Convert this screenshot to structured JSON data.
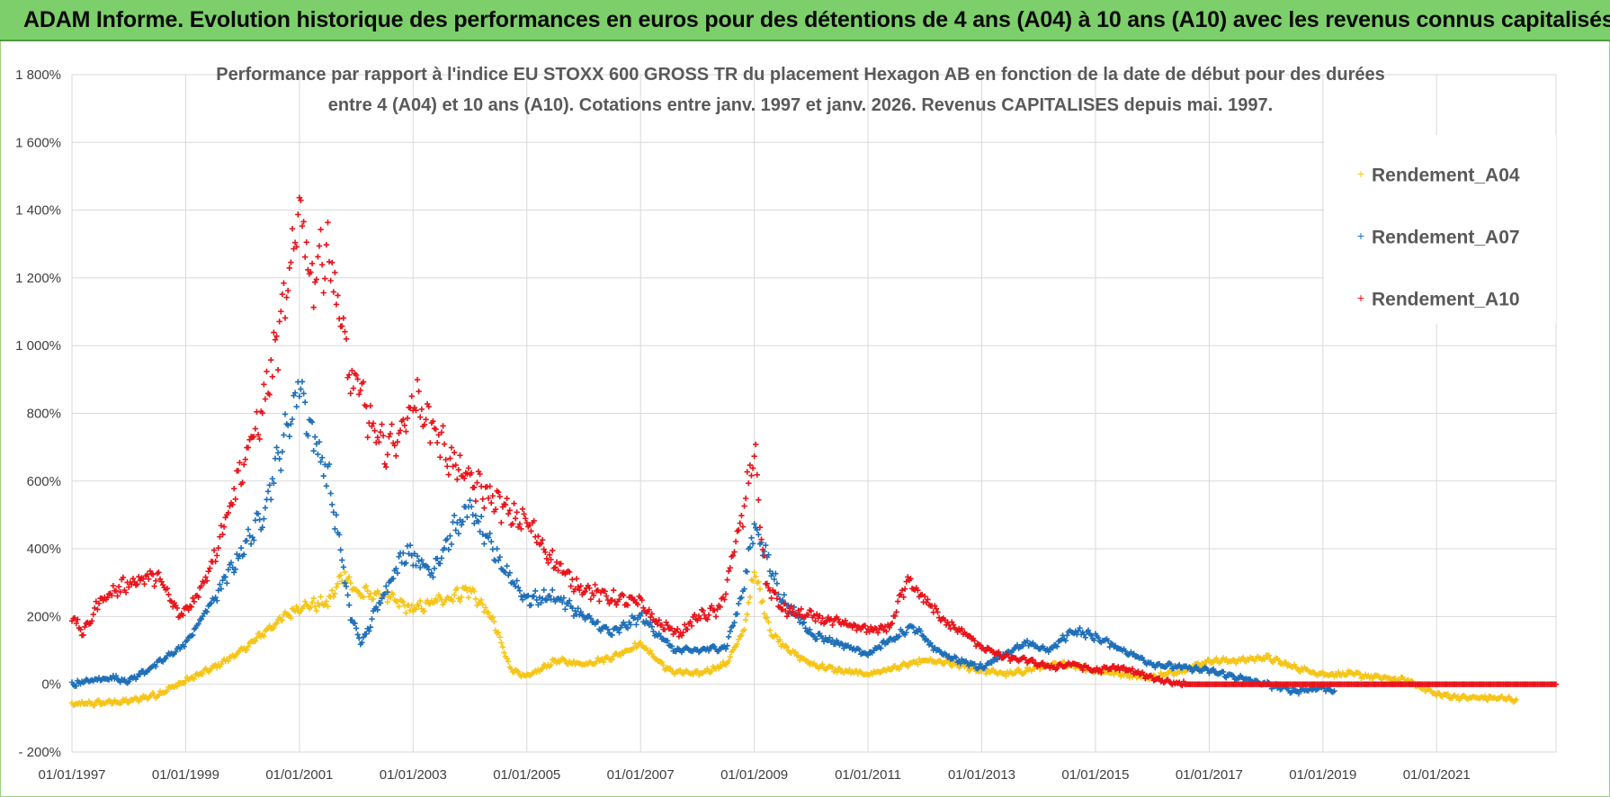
{
  "header": {
    "title": "ADAM Informe. Evolution historique des performances en euros pour des détentions de 4 ans (A04) à 10 ans (A10) avec les revenus connus capitalisés"
  },
  "chart_data": {
    "type": "scatter",
    "title_line1": "Performance par rapport à l'indice EU STOXX 600 GROSS TR  du placement Hexagon AB en fonction de la date de début pour des durées",
    "title_line2": "entre 4 (A04) et 10 ans (A10).  Cotations entre janv. 1997 et janv. 2026. Revenus CAPITALISES depuis mai. 1997.",
    "x_tick_labels": [
      "01/01/1997",
      "01/01/1999",
      "01/01/2001",
      "01/01/2003",
      "01/01/2005",
      "01/01/2007",
      "01/01/2009",
      "01/01/2011",
      "01/01/2013",
      "01/01/2015",
      "01/01/2017",
      "01/01/2019",
      "01/01/2021"
    ],
    "x_tick_years": [
      1997,
      1999,
      2001,
      2003,
      2005,
      2007,
      2009,
      2011,
      2013,
      2015,
      2017,
      2019,
      2021
    ],
    "xlim": [
      1997,
      2023.1
    ],
    "y_tick_labels": [
      "1 800%",
      "1 600%",
      "1 400%",
      "1 200%",
      "1 000%",
      "800%",
      "600%",
      "400%",
      "200%",
      "0%",
      "- 200%"
    ],
    "y_tick_values": [
      1800,
      1600,
      1400,
      1200,
      1000,
      800,
      600,
      400,
      200,
      0,
      -200
    ],
    "ylim": [
      -200,
      1800
    ],
    "marker": "+",
    "grid": true,
    "legend_position": "top-right",
    "series": [
      {
        "name": "Rendement_A04",
        "color": "#f5c518",
        "points": [
          [
            1997.0,
            -60
          ],
          [
            1997.5,
            -55
          ],
          [
            1998.0,
            -50
          ],
          [
            1998.5,
            -30
          ],
          [
            1999.0,
            10
          ],
          [
            1999.5,
            50
          ],
          [
            2000.0,
            100
          ],
          [
            2000.5,
            170
          ],
          [
            2001.0,
            230
          ],
          [
            2001.5,
            240
          ],
          [
            2001.8,
            330
          ],
          [
            2002.0,
            270
          ],
          [
            2002.5,
            260
          ],
          [
            2003.0,
            220
          ],
          [
            2003.5,
            250
          ],
          [
            2004.0,
            280
          ],
          [
            2004.4,
            190
          ],
          [
            2004.7,
            50
          ],
          [
            2005.0,
            20
          ],
          [
            2005.5,
            70
          ],
          [
            2006.0,
            60
          ],
          [
            2006.5,
            80
          ],
          [
            2007.0,
            120
          ],
          [
            2007.5,
            40
          ],
          [
            2008.0,
            30
          ],
          [
            2008.5,
            60
          ],
          [
            2008.8,
            150
          ],
          [
            2009.0,
            330
          ],
          [
            2009.3,
            150
          ],
          [
            2009.7,
            90
          ],
          [
            2010.0,
            60
          ],
          [
            2010.5,
            40
          ],
          [
            2011.0,
            30
          ],
          [
            2011.5,
            50
          ],
          [
            2012.0,
            70
          ],
          [
            2012.5,
            60
          ],
          [
            2013.0,
            40
          ],
          [
            2013.5,
            30
          ],
          [
            2014.0,
            50
          ],
          [
            2014.5,
            60
          ],
          [
            2015.0,
            40
          ],
          [
            2015.5,
            30
          ],
          [
            2016.0,
            20
          ],
          [
            2016.5,
            40
          ],
          [
            2017.0,
            70
          ],
          [
            2017.5,
            70
          ],
          [
            2018.0,
            80
          ],
          [
            2018.5,
            50
          ],
          [
            2019.0,
            30
          ],
          [
            2019.5,
            30
          ],
          [
            2020.0,
            20
          ],
          [
            2020.5,
            10
          ],
          [
            2021.0,
            -30
          ],
          [
            2021.5,
            -40
          ],
          [
            2022.0,
            -40
          ],
          [
            2022.4,
            -45
          ]
        ]
      },
      {
        "name": "Rendement_A07",
        "color": "#1f6fb8",
        "points": [
          [
            1997.0,
            0
          ],
          [
            1997.3,
            10
          ],
          [
            1997.7,
            20
          ],
          [
            1998.0,
            10
          ],
          [
            1998.5,
            60
          ],
          [
            1999.0,
            120
          ],
          [
            1999.3,
            200
          ],
          [
            1999.6,
            280
          ],
          [
            2000.0,
            400
          ],
          [
            2000.3,
            480
          ],
          [
            2000.6,
            650
          ],
          [
            2000.9,
            820
          ],
          [
            2001.0,
            900
          ],
          [
            2001.2,
            750
          ],
          [
            2001.5,
            620
          ],
          [
            2001.7,
            420
          ],
          [
            2001.9,
            200
          ],
          [
            2002.1,
            120
          ],
          [
            2002.5,
            280
          ],
          [
            2002.9,
            400
          ],
          [
            2003.3,
            330
          ],
          [
            2003.7,
            450
          ],
          [
            2004.0,
            520
          ],
          [
            2004.3,
            420
          ],
          [
            2004.7,
            320
          ],
          [
            2005.0,
            250
          ],
          [
            2005.5,
            260
          ],
          [
            2006.0,
            200
          ],
          [
            2006.5,
            150
          ],
          [
            2007.0,
            200
          ],
          [
            2007.3,
            150
          ],
          [
            2007.6,
            100
          ],
          [
            2008.0,
            100
          ],
          [
            2008.5,
            110
          ],
          [
            2008.8,
            270
          ],
          [
            2009.0,
            480
          ],
          [
            2009.2,
            380
          ],
          [
            2009.5,
            250
          ],
          [
            2010.0,
            150
          ],
          [
            2010.5,
            120
          ],
          [
            2011.0,
            90
          ],
          [
            2011.4,
            130
          ],
          [
            2011.8,
            170
          ],
          [
            2012.2,
            100
          ],
          [
            2012.6,
            70
          ],
          [
            2013.0,
            50
          ],
          [
            2013.4,
            90
          ],
          [
            2013.8,
            120
          ],
          [
            2014.2,
            100
          ],
          [
            2014.6,
            160
          ],
          [
            2015.0,
            140
          ],
          [
            2015.5,
            100
          ],
          [
            2016.0,
            60
          ],
          [
            2016.5,
            50
          ],
          [
            2017.0,
            40
          ],
          [
            2017.5,
            20
          ],
          [
            2018.0,
            0
          ],
          [
            2018.5,
            -20
          ],
          [
            2019.0,
            -10
          ],
          [
            2019.2,
            -20
          ]
        ]
      },
      {
        "name": "Rendement_A10",
        "color": "#e8141b",
        "points": [
          [
            1997.0,
            200
          ],
          [
            1997.2,
            150
          ],
          [
            1997.5,
            250
          ],
          [
            1998.0,
            300
          ],
          [
            1998.5,
            320
          ],
          [
            1998.9,
            200
          ],
          [
            1999.2,
            260
          ],
          [
            1999.5,
            380
          ],
          [
            1999.9,
            600
          ],
          [
            2000.3,
            780
          ],
          [
            2000.6,
            1000
          ],
          [
            2000.9,
            1250
          ],
          [
            2001.0,
            1450
          ],
          [
            2001.2,
            1200
          ],
          [
            2001.5,
            1300
          ],
          [
            2001.7,
            1100
          ],
          [
            2001.9,
            900
          ],
          [
            2002.1,
            850
          ],
          [
            2002.4,
            700
          ],
          [
            2002.7,
            720
          ],
          [
            2003.0,
            840
          ],
          [
            2003.3,
            780
          ],
          [
            2003.7,
            650
          ],
          [
            2004.0,
            600
          ],
          [
            2004.4,
            550
          ],
          [
            2004.7,
            500
          ],
          [
            2005.0,
            480
          ],
          [
            2005.4,
            380
          ],
          [
            2005.8,
            300
          ],
          [
            2006.2,
            270
          ],
          [
            2006.6,
            250
          ],
          [
            2007.0,
            240
          ],
          [
            2007.3,
            180
          ],
          [
            2007.7,
            150
          ],
          [
            2008.0,
            200
          ],
          [
            2008.4,
            220
          ],
          [
            2008.8,
            500
          ],
          [
            2009.0,
            700
          ],
          [
            2009.2,
            300
          ],
          [
            2009.5,
            220
          ],
          [
            2010.0,
            200
          ],
          [
            2010.5,
            180
          ],
          [
            2011.0,
            160
          ],
          [
            2011.4,
            170
          ],
          [
            2011.7,
            320
          ],
          [
            2011.9,
            270
          ],
          [
            2012.3,
            190
          ],
          [
            2012.7,
            150
          ],
          [
            2013.0,
            110
          ],
          [
            2013.4,
            80
          ],
          [
            2013.8,
            70
          ],
          [
            2014.2,
            50
          ],
          [
            2014.6,
            60
          ],
          [
            2015.0,
            40
          ],
          [
            2015.4,
            50
          ],
          [
            2015.8,
            30
          ],
          [
            2016.2,
            10
          ],
          [
            2016.6,
            0
          ],
          [
            2017.5,
            0
          ],
          [
            2018.5,
            0
          ],
          [
            2019.5,
            0
          ],
          [
            2020.5,
            0
          ],
          [
            2021.5,
            0
          ],
          [
            2022.5,
            0
          ],
          [
            2023.1,
            0
          ]
        ]
      }
    ]
  }
}
